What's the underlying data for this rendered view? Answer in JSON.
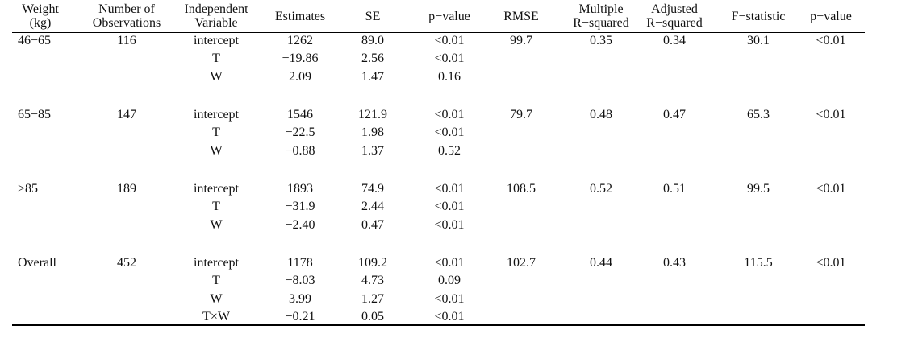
{
  "table": {
    "header": [
      [
        "Weight",
        "(kg)"
      ],
      [
        "Number of",
        "Observations"
      ],
      [
        "Independent",
        "Variable"
      ],
      [
        "Estimates"
      ],
      [
        "SE"
      ],
      [
        "p−value"
      ],
      [
        "RMSE"
      ],
      [
        "Multiple",
        "R−squared"
      ],
      [
        "Adjusted",
        "R−squared"
      ],
      [
        "F−statistic"
      ],
      [
        "p−value"
      ]
    ],
    "groups": [
      {
        "weight": "46−65",
        "observations": "116",
        "rmse": "99.7",
        "multiple_r_squared": "0.35",
        "adjusted_r_squared": "0.34",
        "f_statistic": "30.1",
        "p_value": "<0.01",
        "rows": [
          [
            "intercept",
            "1262",
            "89.0",
            "<0.01"
          ],
          [
            "T",
            "−19.86",
            "2.56",
            "<0.01"
          ],
          [
            "W",
            "2.09",
            "1.47",
            "0.16"
          ]
        ]
      },
      {
        "weight": "65−85",
        "observations": "147",
        "rmse": "79.7",
        "multiple_r_squared": "0.48",
        "adjusted_r_squared": "0.47",
        "f_statistic": "65.3",
        "p_value": "<0.01",
        "rows": [
          [
            "intercept",
            "1546",
            "121.9",
            "<0.01"
          ],
          [
            "T",
            "−22.5",
            "1.98",
            "<0.01"
          ],
          [
            "W",
            "−0.88",
            "1.37",
            "0.52"
          ]
        ]
      },
      {
        "weight": ">85",
        "observations": "189",
        "rmse": "108.5",
        "multiple_r_squared": "0.52",
        "adjusted_r_squared": "0.51",
        "f_statistic": "99.5",
        "p_value": "<0.01",
        "rows": [
          [
            "intercept",
            "1893",
            "74.9",
            "<0.01"
          ],
          [
            "T",
            "−31.9",
            "2.44",
            "<0.01"
          ],
          [
            "W",
            "−2.40",
            "0.47",
            "<0.01"
          ]
        ]
      },
      {
        "weight": "Overall",
        "observations": "452",
        "rmse": "102.7",
        "multiple_r_squared": "0.44",
        "adjusted_r_squared": "0.43",
        "f_statistic": "115.5",
        "p_value": "<0.01",
        "rows": [
          [
            "intercept",
            "1178",
            "109.2",
            "<0.01"
          ],
          [
            "T",
            "−8.03",
            "4.73",
            "0.09"
          ],
          [
            "W",
            "3.99",
            "1.27",
            "<0.01"
          ],
          [
            "T×W",
            "−0.21",
            "0.05",
            "<0.01"
          ]
        ]
      }
    ]
  }
}
